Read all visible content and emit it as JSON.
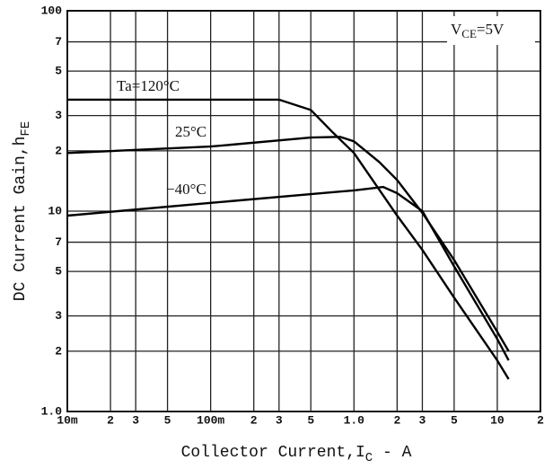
{
  "chart_data": {
    "type": "line",
    "x_label": {
      "text": "Collector Current,I",
      "sub": "C",
      "tail": " - A"
    },
    "y_label": {
      "text": "DC Current Gain,h",
      "sub": "FE"
    },
    "annotation": {
      "text": "V",
      "sub": "CE",
      "tail": "=5V"
    },
    "x_log": true,
    "y_log": true,
    "grid": true,
    "xlim": [
      0.01,
      20
    ],
    "ylim": [
      1,
      100
    ],
    "xticks": [
      {
        "value": 0.01,
        "label": "10m"
      },
      {
        "value": 0.02,
        "label": "2"
      },
      {
        "value": 0.03,
        "label": "3"
      },
      {
        "value": 0.05,
        "label": "5"
      },
      {
        "value": 0.1,
        "label": "100m"
      },
      {
        "value": 0.2,
        "label": "2"
      },
      {
        "value": 0.3,
        "label": "3"
      },
      {
        "value": 0.5,
        "label": "5"
      },
      {
        "value": 1,
        "label": "1.0"
      },
      2,
      3,
      5,
      10,
      {
        "value": 20,
        "label": "2"
      }
    ],
    "yticks": [
      {
        "value": 1,
        "label": "1.0"
      },
      2,
      3,
      5,
      7,
      10,
      {
        "value": 20,
        "label": "2"
      },
      {
        "value": 30,
        "label": "3"
      },
      {
        "value": 50,
        "label": "5"
      },
      {
        "value": 70,
        "label": "7"
      },
      100
    ],
    "series": [
      {
        "name": "Ta=120°C",
        "color": "#000000",
        "x": [
          0.01,
          0.1,
          0.3,
          0.5,
          0.7,
          1,
          2,
          3,
          5,
          10,
          12
        ],
        "values": [
          36,
          36,
          36,
          32,
          25,
          19.5,
          9.5,
          6.4,
          3.7,
          1.8,
          1.45
        ]
      },
      {
        "name": "25°C",
        "color": "#000000",
        "x": [
          0.01,
          0.1,
          0.5,
          0.8,
          1,
          1.5,
          2,
          3,
          5,
          10,
          12
        ],
        "values": [
          19.5,
          21,
          23.3,
          23.5,
          22.3,
          17.6,
          14.3,
          9.8,
          5.7,
          2.5,
          2.0
        ]
      },
      {
        "name": "−40°C",
        "color": "#000000",
        "x": [
          0.01,
          0.1,
          1,
          1.6,
          2,
          3,
          5,
          10,
          12
        ],
        "values": [
          9.5,
          11,
          12.7,
          13.2,
          12.3,
          10,
          5.3,
          2.3,
          1.8
        ]
      }
    ]
  }
}
